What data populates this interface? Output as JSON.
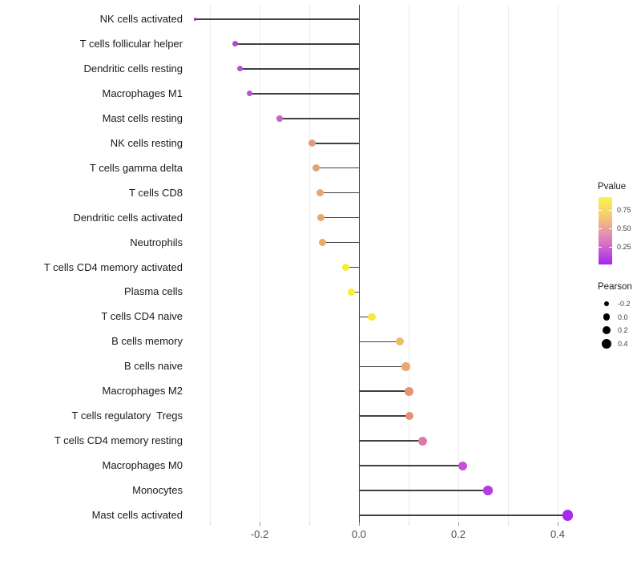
{
  "chart_data": {
    "type": "bar",
    "variant": "horizontal-lollipop",
    "title": "",
    "xlabel": "",
    "ylabel": "",
    "xlim": [
      -0.34,
      0.43
    ],
    "grid": "vertical-minor-every-0.1",
    "zero_line": true,
    "x_ticks": [
      {
        "value": -0.2,
        "label": "-0.2"
      },
      {
        "value": 0.0,
        "label": "0.0"
      },
      {
        "value": 0.2,
        "label": "0.2"
      },
      {
        "value": 0.4,
        "label": "0.4"
      }
    ],
    "grid_values": [
      -0.3,
      -0.2,
      -0.1,
      0.0,
      0.1,
      0.2,
      0.3,
      0.4
    ],
    "points": [
      {
        "label": "NK cells activated",
        "pearson": -0.33,
        "color": "#952FD0",
        "size": 3.5
      },
      {
        "label": "T cells follicular helper",
        "pearson": -0.25,
        "color": "#B348CF",
        "size": 7
      },
      {
        "label": "Dendritic cells resting",
        "pearson": -0.24,
        "color": "#B84FD4",
        "size": 7
      },
      {
        "label": "Macrophages M1",
        "pearson": -0.22,
        "color": "#B951D3",
        "size": 7
      },
      {
        "label": "Mast cells resting",
        "pearson": -0.16,
        "color": "#C466C5",
        "size": 7.5
      },
      {
        "label": "NK cells resting",
        "pearson": -0.095,
        "color": "#E39A80",
        "size": 9
      },
      {
        "label": "T cells gamma delta",
        "pearson": -0.087,
        "color": "#E4A176",
        "size": 9
      },
      {
        "label": "T cells CD8",
        "pearson": -0.078,
        "color": "#E7A76F",
        "size": 9
      },
      {
        "label": "Dendritic cells activated",
        "pearson": -0.077,
        "color": "#E7A76E",
        "size": 9
      },
      {
        "label": "Neutrophils",
        "pearson": -0.074,
        "color": "#E9AA67",
        "size": 9
      },
      {
        "label": "T cells CD4 memory activated",
        "pearson": -0.027,
        "color": "#F4EE33",
        "size": 9
      },
      {
        "label": "Plasma cells",
        "pearson": -0.015,
        "color": "#F6F12C",
        "size": 9.5
      },
      {
        "label": "T cells CD4 naive",
        "pearson": 0.026,
        "color": "#F3E83B",
        "size": 9.5
      },
      {
        "label": "B cells memory",
        "pearson": 0.083,
        "color": "#F0BA67",
        "size": 10
      },
      {
        "label": "B cells naive",
        "pearson": 0.094,
        "color": "#EBA56F",
        "size": 10.5
      },
      {
        "label": "Macrophages M2",
        "pearson": 0.101,
        "color": "#E89177",
        "size": 10.5
      },
      {
        "label": "T cells regulatory  Tregs",
        "pearson": 0.102,
        "color": "#E78F7B",
        "size": 10.5
      },
      {
        "label": "T cells CD4 memory resting",
        "pearson": 0.128,
        "color": "#D97BA9",
        "size": 11
      },
      {
        "label": "Macrophages M0",
        "pearson": 0.209,
        "color": "#C352D4",
        "size": 11
      },
      {
        "label": "Monocytes",
        "pearson": 0.26,
        "color": "#B23EE3",
        "size": 11.5
      },
      {
        "label": "Mast cells activated",
        "pearson": 0.42,
        "color": "#A42BEF",
        "size": 13.5
      }
    ],
    "legend": {
      "pvalue": {
        "title": "Pvalue",
        "gradient": [
          {
            "color": "#F9F44E",
            "pos": 0
          },
          {
            "color": "#F4CB70",
            "pos": 28
          },
          {
            "color": "#E795AA",
            "pos": 52
          },
          {
            "color": "#D470C7",
            "pos": 70
          },
          {
            "color": "#A724F3",
            "pos": 100
          }
        ],
        "ticks": [
          {
            "label": "0.75",
            "pos": 19
          },
          {
            "label": "0.50",
            "pos": 46.5
          },
          {
            "label": "0.25",
            "pos": 74
          }
        ]
      },
      "pearson": {
        "title": "Pearson",
        "items": [
          {
            "label": "-0.2",
            "size": 6.5
          },
          {
            "label": "0.0",
            "size": 8.5
          },
          {
            "label": "0.2",
            "size": 10
          },
          {
            "label": "0.4",
            "size": 12
          }
        ]
      }
    },
    "colors": {
      "background": "#FFFFFF",
      "stem": "#404040",
      "zero_line": "#3A3A3A",
      "gridline": "#ECECEC",
      "axis_text": "#4D4D4D",
      "category_text": "#1A1A1A",
      "legend_dot": "#000000"
    }
  }
}
